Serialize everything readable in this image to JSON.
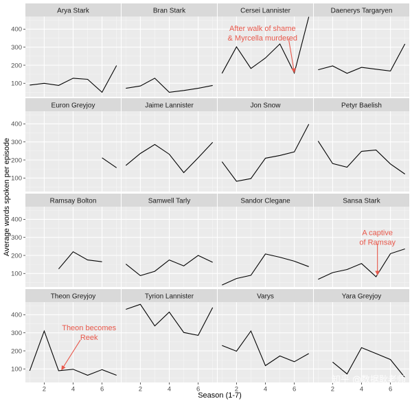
{
  "chart_data": {
    "type": "line",
    "layout": "facet-grid",
    "facet_rows": 4,
    "facet_cols": 4,
    "xlabel": "Season (1-7)",
    "ylabel": "Average words spoken per episode",
    "xlim": [
      0.7,
      7.3
    ],
    "ylim": [
      25,
      470
    ],
    "x_ticks": [
      2,
      4,
      6
    ],
    "y_ticks": [
      100,
      200,
      300,
      400
    ],
    "grid": true,
    "panels": [
      {
        "name": "Arya Stark",
        "x": [
          1,
          2,
          3,
          4,
          5,
          6,
          7
        ],
        "y": [
          90,
          100,
          88,
          128,
          122,
          50,
          198
        ]
      },
      {
        "name": "Bran Stark",
        "x": [
          1,
          2,
          3,
          4,
          5,
          6,
          7
        ],
        "y": [
          72,
          85,
          128,
          50,
          60,
          72,
          88
        ]
      },
      {
        "name": "Cersei Lannister",
        "x": [
          1,
          2,
          3,
          4,
          5,
          6,
          7
        ],
        "y": [
          155,
          302,
          182,
          240,
          318,
          157,
          468
        ]
      },
      {
        "name": "Daenerys Targaryen",
        "x": [
          1,
          2,
          3,
          4,
          5,
          6,
          7
        ],
        "y": [
          175,
          196,
          155,
          188,
          178,
          168,
          318
        ]
      },
      {
        "name": "Euron Greyjoy",
        "x": [
          6,
          7
        ],
        "y": [
          212,
          157
        ]
      },
      {
        "name": "Jaime Lannister",
        "x": [
          1,
          2,
          3,
          4,
          5,
          6,
          7
        ],
        "y": [
          170,
          236,
          286,
          232,
          130,
          212,
          298
        ]
      },
      {
        "name": "Jon Snow",
        "x": [
          1,
          2,
          3,
          4,
          5,
          6,
          7
        ],
        "y": [
          190,
          82,
          97,
          210,
          225,
          245,
          398
        ]
      },
      {
        "name": "Petyr Baelish",
        "x": [
          1,
          2,
          3,
          4,
          5,
          6,
          7
        ],
        "y": [
          305,
          180,
          160,
          248,
          255,
          178,
          122
        ]
      },
      {
        "name": "Ramsay Bolton",
        "x": [
          3,
          4,
          5,
          6
        ],
        "y": [
          125,
          220,
          175,
          165
        ]
      },
      {
        "name": "Samwell Tarly",
        "x": [
          1,
          2,
          3,
          4,
          5,
          6,
          7
        ],
        "y": [
          152,
          88,
          112,
          175,
          142,
          200,
          162
        ]
      },
      {
        "name": "Sandor Clegane",
        "x": [
          1,
          2,
          3,
          4,
          5,
          6,
          7
        ],
        "y": [
          36,
          72,
          90,
          208,
          190,
          168,
          138
        ]
      },
      {
        "name": "Sansa Stark",
        "x": [
          1,
          2,
          3,
          4,
          5,
          6,
          7
        ],
        "y": [
          68,
          105,
          122,
          155,
          82,
          210,
          236
        ]
      },
      {
        "name": "Theon Greyjoy",
        "x": [
          1,
          2,
          3,
          4,
          5,
          6,
          7
        ],
        "y": [
          90,
          310,
          90,
          98,
          65,
          96,
          65
        ]
      },
      {
        "name": "Tyrion Lannister",
        "x": [
          1,
          2,
          3,
          4,
          5,
          6,
          7
        ],
        "y": [
          430,
          458,
          338,
          415,
          302,
          286,
          440
        ]
      },
      {
        "name": "Varys",
        "x": [
          1,
          2,
          3,
          4,
          5,
          6,
          7
        ],
        "y": [
          230,
          198,
          310,
          118,
          172,
          140,
          185
        ]
      },
      {
        "name": "Yara Greyjoy",
        "x": [
          2,
          3,
          4,
          5,
          6,
          7
        ],
        "y": [
          138,
          72,
          218,
          185,
          152,
          52
        ]
      }
    ],
    "annotations": [
      {
        "panel": 2,
        "lines": [
          "After walk of shame",
          "& Myrcella murdered"
        ],
        "text_at": [
          3.8,
          390
        ],
        "arrow_from": [
          5.6,
          348
        ],
        "arrow_to": [
          6.0,
          160
        ]
      },
      {
        "panel": 11,
        "lines": [
          "A captive",
          "of Ramsay"
        ],
        "text_at": [
          5.1,
          312
        ],
        "arrow_from": [
          5.1,
          265
        ],
        "arrow_to": [
          5.1,
          92
        ]
      },
      {
        "panel": 12,
        "lines": [
          "Theon becomes",
          "Reek"
        ],
        "text_at": [
          5.1,
          315
        ],
        "arrow_from": [
          4.5,
          260
        ],
        "arrow_to": [
          3.2,
          95
        ]
      }
    ]
  },
  "watermark": {
    "text": "知乎 @数据耿老师"
  }
}
